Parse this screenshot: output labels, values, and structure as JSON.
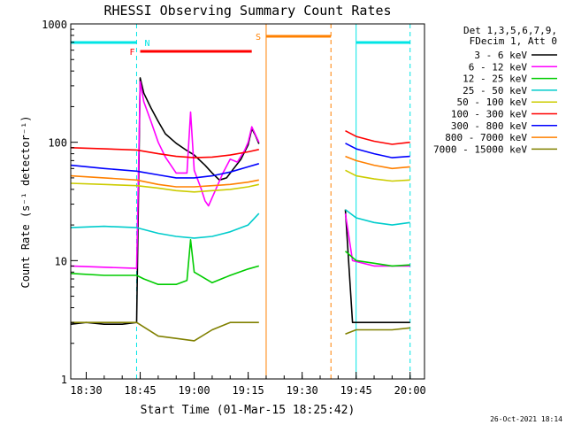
{
  "chart_data": {
    "type": "line",
    "title": "RHESSI Observing Summary Count Rates",
    "xlabel": "Start Time (01-Mar-15 18:25:42)",
    "ylabel": "Count Rate (s⁻¹ detector⁻¹)",
    "y_scale": "log",
    "ylim": [
      1,
      1000
    ],
    "xlim": [
      "18:25:42",
      "20:04:00"
    ],
    "x_ticks": [
      "18:30",
      "18:45",
      "19:00",
      "19:15",
      "19:30",
      "19:45",
      "20:00"
    ],
    "y_ticks": [
      "1",
      "10",
      "100",
      "1000"
    ],
    "grid": false,
    "legend_position": "right",
    "legend_header": [
      "Det 1,3,5,6,7,9,",
      "FDecim 1, Att 0"
    ],
    "footer_timestamp": "26-Oct-2021 18:14",
    "series": [
      {
        "name": "3 - 6 keV",
        "color": "#000000",
        "points": [
          [
            "18:25:42",
            2.9
          ],
          [
            "18:30",
            3.0
          ],
          [
            "18:35",
            2.9
          ],
          [
            "18:40",
            2.9
          ],
          [
            "18:44",
            3.0
          ],
          [
            "18:45",
            350
          ],
          [
            "18:46",
            260
          ],
          [
            "18:48",
            195
          ],
          [
            "18:50",
            150
          ],
          [
            "18:52",
            118
          ],
          [
            "18:55",
            98
          ],
          [
            "18:58",
            85
          ],
          [
            "19:00",
            78
          ],
          [
            "19:03",
            64
          ],
          [
            "19:05",
            55
          ],
          [
            "19:07",
            48
          ],
          [
            "19:09",
            50
          ],
          [
            "19:11",
            60
          ],
          [
            "19:13",
            72
          ],
          [
            "19:15",
            95
          ],
          [
            "19:16",
            130
          ],
          [
            "19:17",
            115
          ],
          [
            "19:18",
            97
          ],
          [
            "19:42",
            27
          ],
          [
            "19:44",
            3.0
          ],
          [
            "19:50",
            3.0
          ],
          [
            "19:55",
            3.0
          ],
          [
            "20:00",
            3.0
          ]
        ]
      },
      {
        "name": "6 - 12 keV",
        "color": "#ff00ff",
        "points": [
          [
            "18:25:42",
            9.0
          ],
          [
            "18:35",
            8.8
          ],
          [
            "18:44",
            8.6
          ],
          [
            "18:45",
            325
          ],
          [
            "18:46",
            220
          ],
          [
            "18:48",
            150
          ],
          [
            "18:50",
            100
          ],
          [
            "18:52",
            75
          ],
          [
            "18:55",
            55
          ],
          [
            "18:58",
            55
          ],
          [
            "18:59",
            180
          ],
          [
            "19:00",
            58
          ],
          [
            "19:02",
            40
          ],
          [
            "19:03",
            32
          ],
          [
            "19:04",
            29
          ],
          [
            "19:06",
            40
          ],
          [
            "19:08",
            55
          ],
          [
            "19:10",
            72
          ],
          [
            "19:12",
            68
          ],
          [
            "19:14",
            85
          ],
          [
            "19:15",
            100
          ],
          [
            "19:16",
            135
          ],
          [
            "19:18",
            100
          ],
          [
            "19:42",
            25
          ],
          [
            "19:44",
            10
          ],
          [
            "19:50",
            9
          ],
          [
            "20:00",
            9
          ]
        ]
      },
      {
        "name": "12 - 25 keV",
        "color": "#00cc00",
        "points": [
          [
            "18:25:42",
            7.8
          ],
          [
            "18:35",
            7.5
          ],
          [
            "18:44",
            7.5
          ],
          [
            "18:46",
            7.0
          ],
          [
            "18:50",
            6.3
          ],
          [
            "18:55",
            6.3
          ],
          [
            "18:58",
            6.8
          ],
          [
            "18:59",
            15
          ],
          [
            "19:00",
            8
          ],
          [
            "19:05",
            6.5
          ],
          [
            "19:10",
            7.5
          ],
          [
            "19:15",
            8.5
          ],
          [
            "19:18",
            9.0
          ],
          [
            "19:42",
            12
          ],
          [
            "19:45",
            10
          ],
          [
            "19:50",
            9.5
          ],
          [
            "19:55",
            9.0
          ],
          [
            "20:00",
            9.2
          ]
        ]
      },
      {
        "name": "25 - 50 keV",
        "color": "#00cccc",
        "points": [
          [
            "18:25:42",
            19
          ],
          [
            "18:35",
            19.5
          ],
          [
            "18:44",
            19
          ],
          [
            "18:50",
            17
          ],
          [
            "18:55",
            16
          ],
          [
            "19:00",
            15.5
          ],
          [
            "19:05",
            16
          ],
          [
            "19:10",
            17.5
          ],
          [
            "19:15",
            20
          ],
          [
            "19:18",
            25
          ],
          [
            "19:42",
            27
          ],
          [
            "19:45",
            23
          ],
          [
            "19:50",
            21
          ],
          [
            "19:55",
            20
          ],
          [
            "20:00",
            21
          ]
        ]
      },
      {
        "name": "50 - 100 keV",
        "color": "#cccc00",
        "points": [
          [
            "18:25:42",
            45
          ],
          [
            "18:35",
            44
          ],
          [
            "18:44",
            43
          ],
          [
            "18:50",
            41
          ],
          [
            "18:55",
            39
          ],
          [
            "19:00",
            38
          ],
          [
            "19:05",
            39
          ],
          [
            "19:10",
            40
          ],
          [
            "19:15",
            42
          ],
          [
            "19:18",
            44
          ],
          [
            "19:42",
            58
          ],
          [
            "19:45",
            52
          ],
          [
            "19:50",
            49
          ],
          [
            "19:55",
            47
          ],
          [
            "20:00",
            48
          ]
        ]
      },
      {
        "name": "100 - 300 keV",
        "color": "#ff0000",
        "points": [
          [
            "18:25:42",
            90
          ],
          [
            "18:35",
            88
          ],
          [
            "18:44",
            86
          ],
          [
            "18:50",
            80
          ],
          [
            "18:55",
            76
          ],
          [
            "19:00",
            74
          ],
          [
            "19:05",
            75
          ],
          [
            "19:10",
            78
          ],
          [
            "19:15",
            83
          ],
          [
            "19:18",
            87
          ],
          [
            "19:42",
            125
          ],
          [
            "19:45",
            112
          ],
          [
            "19:50",
            102
          ],
          [
            "19:55",
            96
          ],
          [
            "20:00",
            100
          ]
        ]
      },
      {
        "name": "300 - 800 keV",
        "color": "#0000ff",
        "points": [
          [
            "18:25:42",
            64
          ],
          [
            "18:35",
            60
          ],
          [
            "18:44",
            57
          ],
          [
            "18:50",
            53
          ],
          [
            "18:55",
            50
          ],
          [
            "19:00",
            50
          ],
          [
            "19:05",
            52
          ],
          [
            "19:10",
            56
          ],
          [
            "19:15",
            62
          ],
          [
            "19:18",
            66
          ],
          [
            "19:42",
            98
          ],
          [
            "19:45",
            88
          ],
          [
            "19:50",
            80
          ],
          [
            "19:55",
            74
          ],
          [
            "20:00",
            76
          ]
        ]
      },
      {
        "name": "800 - 7000 keV",
        "color": "#ff8000",
        "points": [
          [
            "18:25:42",
            52
          ],
          [
            "18:35",
            50
          ],
          [
            "18:44",
            48
          ],
          [
            "18:50",
            44
          ],
          [
            "18:55",
            42
          ],
          [
            "19:00",
            42
          ],
          [
            "19:05",
            43
          ],
          [
            "19:10",
            44
          ],
          [
            "19:15",
            46
          ],
          [
            "19:18",
            48
          ],
          [
            "19:42",
            76
          ],
          [
            "19:45",
            70
          ],
          [
            "19:50",
            64
          ],
          [
            "19:55",
            60
          ],
          [
            "20:00",
            62
          ]
        ]
      },
      {
        "name": "7000 - 15000 keV",
        "color": "#808000",
        "points": [
          [
            "18:25:42",
            3.0
          ],
          [
            "18:35",
            3.0
          ],
          [
            "18:44",
            3.0
          ],
          [
            "18:50",
            2.3
          ],
          [
            "18:55",
            2.2
          ],
          [
            "19:00",
            2.1
          ],
          [
            "19:05",
            2.6
          ],
          [
            "19:10",
            3.0
          ],
          [
            "19:15",
            3.0
          ],
          [
            "19:18",
            3.0
          ],
          [
            "19:42",
            2.4
          ],
          [
            "19:45",
            2.6
          ],
          [
            "19:50",
            2.6
          ],
          [
            "19:55",
            2.6
          ],
          [
            "20:00",
            2.7
          ]
        ]
      }
    ],
    "annotations": [
      {
        "label": "N",
        "color": "#00e5e5",
        "segments": [
          [
            "18:25:42",
            "18:44"
          ],
          [
            "19:45",
            "20:00"
          ]
        ]
      },
      {
        "label": "F",
        "color": "#ff0000",
        "segments": [
          [
            "18:45",
            "19:16"
          ]
        ]
      },
      {
        "label": "S",
        "color": "#ff8000",
        "segments": [
          [
            "19:20",
            "19:38"
          ]
        ]
      }
    ],
    "vertical_lines": [
      {
        "time": "18:25:42",
        "color": "#00e5e5",
        "style": "solid"
      },
      {
        "time": "18:44",
        "color": "#00e5e5",
        "style": "dashed"
      },
      {
        "time": "19:20",
        "color": "#ff8000",
        "style": "solid"
      },
      {
        "time": "19:38",
        "color": "#ff8000",
        "style": "dashed"
      },
      {
        "time": "19:45",
        "color": "#00e5e5",
        "style": "solid"
      },
      {
        "time": "20:00",
        "color": "#00e5e5",
        "style": "dashed"
      }
    ]
  }
}
